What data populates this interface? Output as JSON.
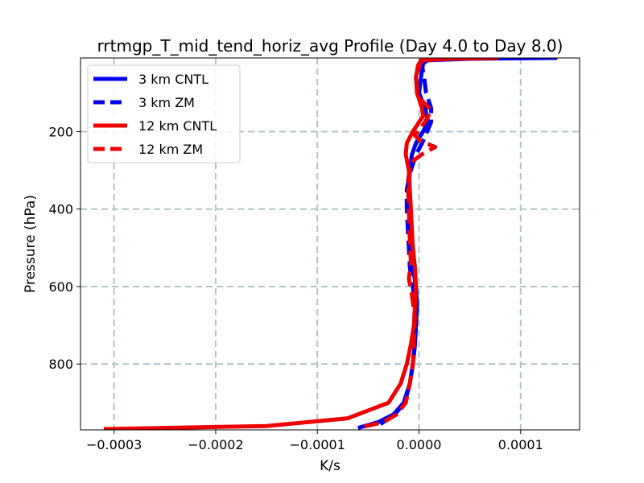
{
  "chart_data": {
    "type": "line",
    "title": "rrtmgp_T_mid_tend_horiz_avg Profile (Day 4.0 to Day 8.0)",
    "xlabel": "K/s",
    "ylabel": "Pressure (hPa)",
    "xlim": [
      -0.000333,
      0.000158
    ],
    "ylim": [
      970,
      10
    ],
    "y_inverted": true,
    "grid": true,
    "legend_position": "top-left",
    "x_ticks": [
      -0.0003,
      -0.0002,
      -0.0001,
      0.0,
      0.0001
    ],
    "x_tick_labels": [
      "−0.0003",
      "−0.0002",
      "−0.0001",
      "0.0000",
      "0.0001"
    ],
    "y_ticks": [
      200,
      400,
      600,
      800
    ],
    "y_tick_labels": [
      "200",
      "400",
      "600",
      "800"
    ],
    "series": [
      {
        "name": "3 km CNTL",
        "color": "#0000ee",
        "dash": "solid",
        "x": [
          0.000136,
          5e-05,
          8e-06,
          4e-06,
          3e-06,
          2e-06,
          0.0,
          6e-06,
          9e-06,
          4e-06,
          -3e-06,
          -7e-06,
          -9e-06,
          -1e-05,
          -1e-05,
          -9e-06,
          -8e-06,
          -6e-06,
          -3e-06,
          -2e-06,
          -3e-06,
          -4e-06,
          -6e-06,
          -9e-06,
          -1.5e-05,
          -2.5e-05,
          -4e-05,
          -6e-05
        ],
        "y": [
          10,
          12,
          16,
          25,
          40,
          60,
          100,
          140,
          175,
          200,
          230,
          260,
          300,
          350,
          400,
          450,
          500,
          550,
          600,
          650,
          700,
          750,
          800,
          850,
          900,
          930,
          950,
          965
        ]
      },
      {
        "name": "3 km ZM",
        "color": "#0000ee",
        "dash": "dashed",
        "x": [
          3e-06,
          3e-06,
          5e-06,
          7e-06,
          1.2e-05,
          1.2e-05,
          8e-06,
          3e-06,
          -3e-06,
          -8e-06,
          -1.2e-05,
          -1.2e-05,
          -1.1e-05,
          -1e-05,
          -9e-06,
          -6e-06,
          -4e-06,
          -3e-06,
          -4e-06,
          -6e-06,
          -9e-06,
          -1.4e-05,
          -2.4e-05,
          -3.8e-05
        ],
        "y": [
          10,
          30,
          60,
          100,
          140,
          175,
          200,
          230,
          260,
          300,
          350,
          400,
          450,
          500,
          550,
          600,
          650,
          700,
          750,
          800,
          850,
          900,
          930,
          955
        ]
      },
      {
        "name": "12 km CNTL",
        "color": "#ee0000",
        "dash": "solid",
        "x": [
          7.8e-05,
          3e-05,
          2e-06,
          -1e-06,
          -3e-06,
          -2e-06,
          3e-06,
          4e-06,
          -1e-06,
          -6e-06,
          -1.2e-05,
          -1.3e-05,
          -1e-05,
          -9e-06,
          -8e-06,
          -7e-06,
          -6e-06,
          -4e-06,
          -3e-06,
          -4e-06,
          -5e-06,
          -8e-06,
          -1.2e-05,
          -1.8e-05,
          -3e-05,
          -7e-05,
          -0.00015,
          -0.00031
        ],
        "y": [
          10,
          12,
          16,
          30,
          60,
          100,
          140,
          160,
          180,
          200,
          230,
          260,
          300,
          350,
          400,
          450,
          500,
          550,
          600,
          650,
          700,
          750,
          800,
          850,
          900,
          940,
          960,
          968
        ]
      },
      {
        "name": "12 km ZM",
        "color": "#ee0000",
        "dash": "dashed",
        "x": [
          3e-06,
          -3e-06,
          -1e-06,
          1.2e-05,
          6e-06,
          -4e-06,
          2e-06,
          1.6e-05,
          5e-06,
          -8e-06,
          -1.1e-05,
          -1e-05,
          -9e-06,
          -8e-06,
          -1e-05,
          -7e-06,
          -4e-06,
          -5e-06,
          -6e-06,
          -9e-06,
          -1.3e-05,
          -2.2e-05,
          -3.5e-05,
          -6e-05
        ],
        "y": [
          10,
          60,
          110,
          145,
          175,
          210,
          225,
          240,
          255,
          280,
          330,
          400,
          480,
          540,
          580,
          620,
          680,
          740,
          800,
          850,
          900,
          930,
          950,
          965
        ]
      }
    ]
  }
}
